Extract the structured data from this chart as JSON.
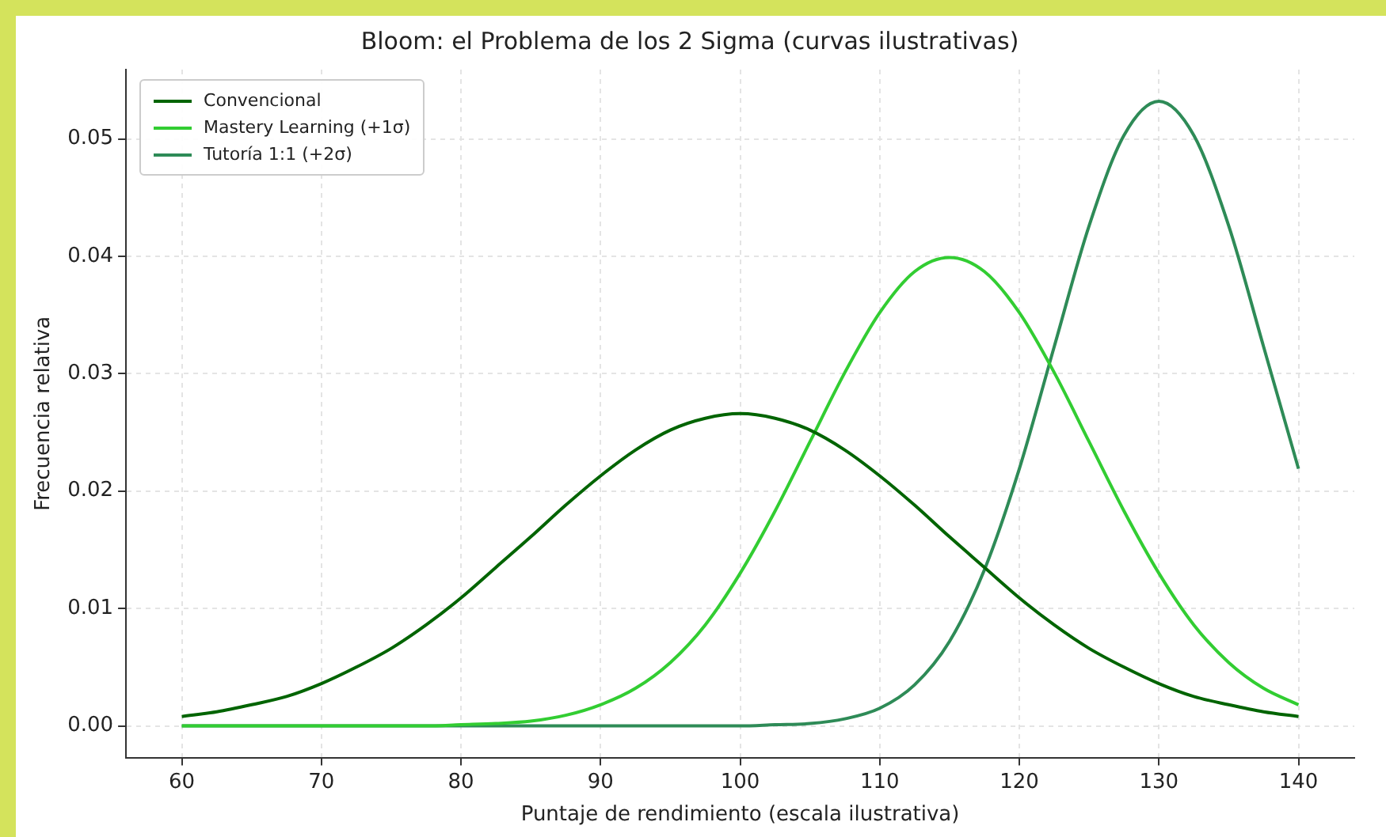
{
  "chart_data": {
    "type": "line",
    "title": "Bloom: el Problema de los 2 Sigma (curvas ilustrativas)",
    "xlabel": "Puntaje de rendimiento (escala ilustrativa)",
    "ylabel": "Frecuencia relativa",
    "x": [
      60,
      62.5,
      65,
      67.5,
      70,
      72.5,
      75,
      77.5,
      80,
      82.5,
      85,
      87.5,
      90,
      92.5,
      95,
      97.5,
      100,
      102.5,
      105,
      107.5,
      110,
      112.5,
      115,
      117.5,
      120,
      122.5,
      125,
      127.5,
      130,
      132.5,
      135,
      137.5,
      140
    ],
    "series": [
      {
        "name": "Convencional",
        "color": "#006400",
        "values": [
          0.0008,
          0.0012,
          0.0018,
          0.0025,
          0.0036,
          0.005,
          0.0066,
          0.0086,
          0.0109,
          0.0135,
          0.0161,
          0.0188,
          0.0213,
          0.0235,
          0.0252,
          0.0262,
          0.0266,
          0.0262,
          0.0252,
          0.0235,
          0.0213,
          0.0188,
          0.0161,
          0.0135,
          0.0109,
          0.0086,
          0.0066,
          0.005,
          0.0036,
          0.0025,
          0.0018,
          0.0012,
          0.0008
        ]
      },
      {
        "name": "Mastery Learning (+1σ)",
        "color": "#32cd32",
        "values": [
          0,
          0,
          0,
          0,
          0,
          0,
          0,
          0,
          0.0001,
          0.0002,
          0.0004,
          0.0009,
          0.0018,
          0.0032,
          0.0054,
          0.0086,
          0.013,
          0.0183,
          0.0242,
          0.0301,
          0.0352,
          0.0387,
          0.0399,
          0.0387,
          0.0352,
          0.0301,
          0.0242,
          0.0183,
          0.013,
          0.0086,
          0.0054,
          0.0032,
          0.0018
        ]
      },
      {
        "name": "Tutoría 1:1 (+2σ)",
        "color": "#2e8b57",
        "values": [
          0,
          0,
          0,
          0,
          0,
          0,
          0,
          0,
          0,
          0,
          0,
          0,
          0,
          0,
          0,
          0,
          0,
          0.0001,
          0.0002,
          0.0006,
          0.0015,
          0.0035,
          0.0072,
          0.0133,
          0.0219,
          0.0323,
          0.0426,
          0.0503,
          0.0532,
          0.0503,
          0.0426,
          0.0323,
          0.0219
        ]
      }
    ],
    "xlim": [
      56,
      144
    ],
    "xticks": [
      60,
      70,
      80,
      90,
      100,
      110,
      120,
      130,
      140
    ],
    "ylim": [
      -0.0027,
      0.0559
    ],
    "yticks": [
      {
        "value": 0,
        "label": "0.00"
      },
      {
        "value": 0.01,
        "label": "0.01"
      },
      {
        "value": 0.02,
        "label": "0.02"
      },
      {
        "value": 0.03,
        "label": "0.03"
      },
      {
        "value": 0.04,
        "label": "0.04"
      },
      {
        "value": 0.05,
        "label": "0.05"
      }
    ],
    "grid": true,
    "legend": "top left",
    "marker": "none",
    "line_style": "solid"
  }
}
